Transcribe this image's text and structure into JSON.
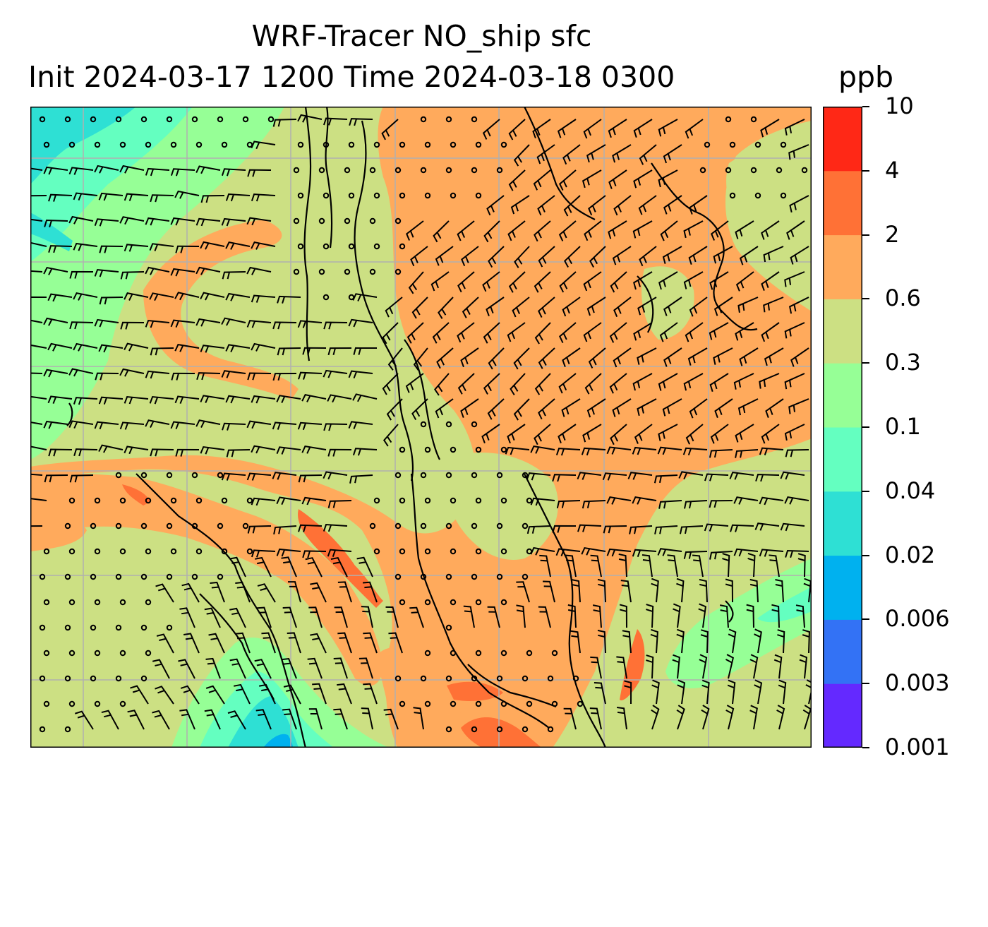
{
  "title": {
    "line1": "WRF-Tracer NO_ship sfc",
    "line2": "Init 2024-03-17 1200 Time 2024-03-18 0300"
  },
  "units": "ppb",
  "colorbar": {
    "levels": [
      "0.001",
      "0.003",
      "0.006",
      "0.02",
      "0.04",
      "0.1",
      "0.3",
      "0.6",
      "2",
      "4",
      "10"
    ],
    "colors": [
      "#6429ff",
      "#3372f5",
      "#00b1ef",
      "#2ee0d4",
      "#64ffc0",
      "#96ff96",
      "#cce083",
      "#ffaa5c",
      "#ff7136",
      "#ff2816"
    ]
  },
  "map": {
    "field_colors": {
      "low_blue": "#00b1ef",
      "cyan": "#2ee0d4",
      "aqua": "#64ffc0",
      "light_green": "#96ff96",
      "olive": "#cce083",
      "orange": "#ffaa5c",
      "dark_orange": "#ff7136",
      "red": "#ff2816"
    },
    "gridline_color": "#b0b0b0",
    "coastline_color": "#000000",
    "symbols": [
      "wind-barb",
      "calm-circle"
    ]
  }
}
